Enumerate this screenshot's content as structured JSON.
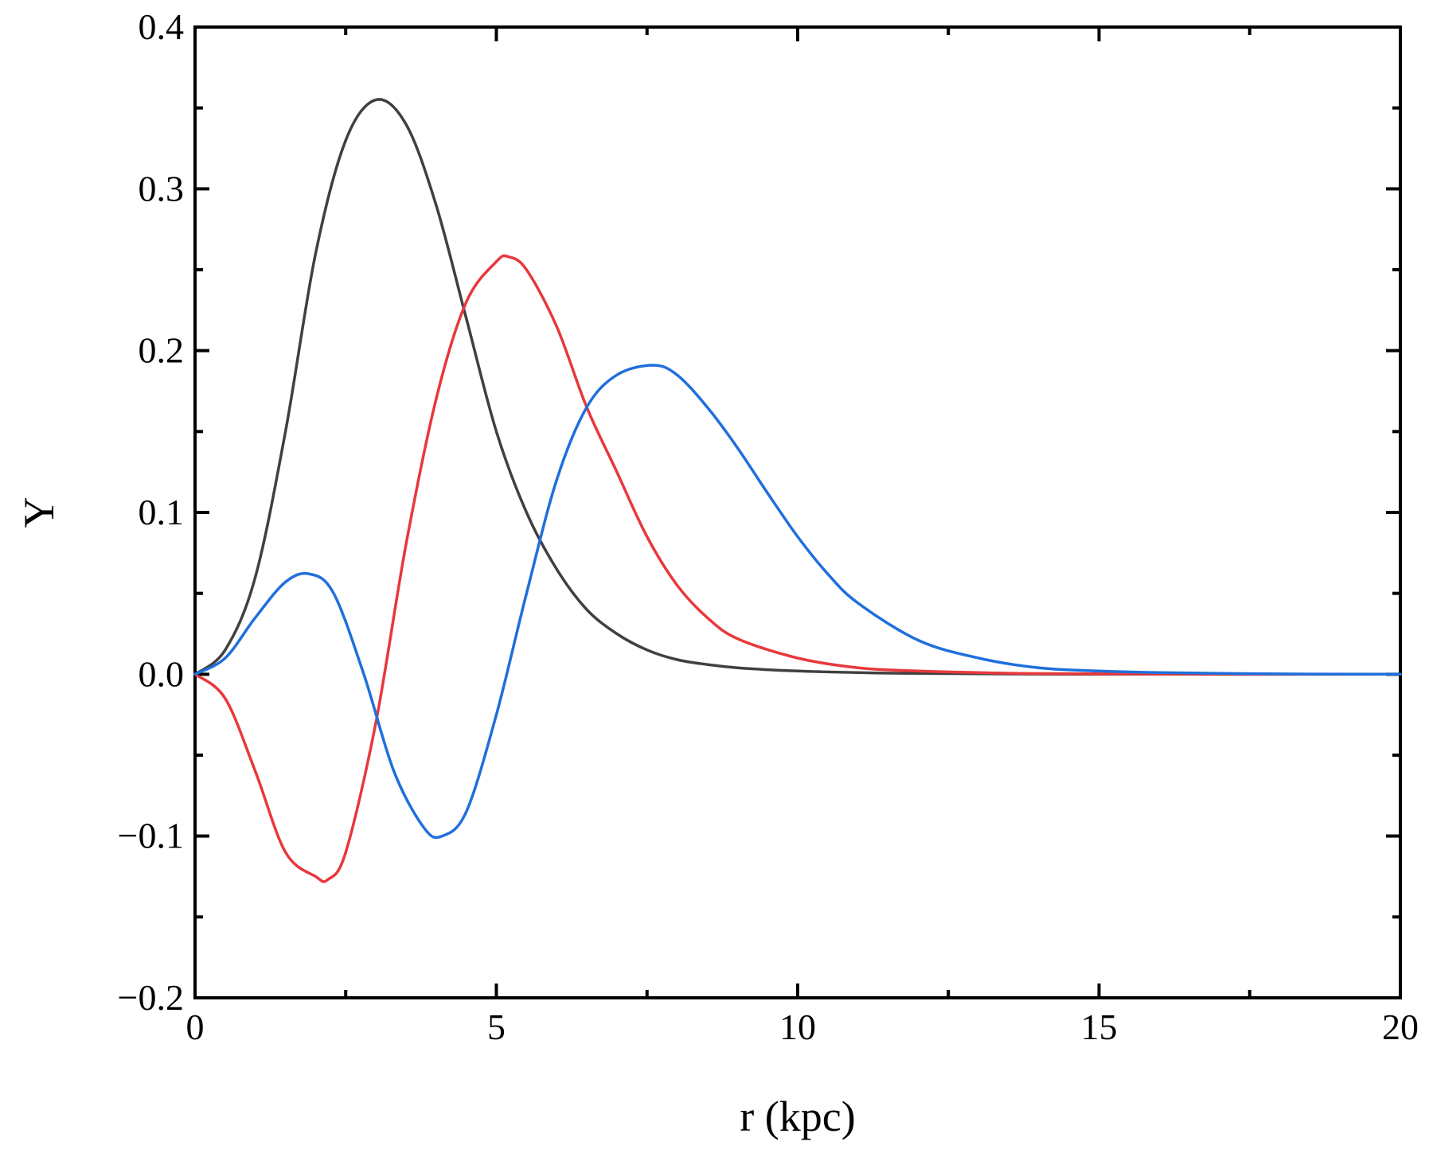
{
  "chart_data": {
    "type": "line",
    "title": "",
    "xlabel": "r (kpc)",
    "ylabel": "Y",
    "xlim": [
      0,
      20
    ],
    "ylim": [
      -0.2,
      0.4
    ],
    "x_ticks": [
      0,
      5,
      10,
      15,
      20
    ],
    "x_tick_labels": [
      "0",
      "5",
      "10",
      "15",
      "20"
    ],
    "y_ticks": [
      -0.2,
      -0.1,
      0.0,
      0.1,
      0.2,
      0.3,
      0.4
    ],
    "y_tick_labels": [
      "−0.2",
      "−0.1",
      "0.0",
      "0.1",
      "0.2",
      "0.3",
      "0.4"
    ],
    "grid": false,
    "legend": "none",
    "series": [
      {
        "color": "#404040",
        "x": [
          0,
          0.5,
          1.0,
          1.5,
          2.0,
          2.5,
          3.0,
          3.5,
          4.0,
          4.5,
          5.0,
          5.5,
          6.0,
          6.5,
          7.0,
          7.5,
          8.0,
          8.5,
          9.0,
          10.0,
          11.0,
          12.0,
          14.0,
          16.0,
          20.0
        ],
        "y": [
          0.0,
          0.015,
          0.06,
          0.15,
          0.26,
          0.33,
          0.355,
          0.34,
          0.29,
          0.22,
          0.15,
          0.1,
          0.065,
          0.04,
          0.025,
          0.015,
          0.009,
          0.006,
          0.004,
          0.002,
          0.001,
          0.0005,
          0.0001,
          0.0,
          0.0
        ]
      },
      {
        "color": "#e8383d",
        "x": [
          0,
          0.5,
          1.0,
          1.5,
          2.0,
          2.2,
          2.5,
          3.0,
          3.5,
          4.0,
          4.5,
          5.0,
          5.2,
          5.5,
          6.0,
          6.5,
          7.0,
          7.5,
          8.0,
          8.5,
          9.0,
          10.0,
          11.0,
          12.0,
          13.0,
          14.0,
          16.0,
          20.0
        ],
        "y": [
          0.0,
          -0.015,
          -0.06,
          -0.11,
          -0.125,
          -0.127,
          -0.11,
          -0.03,
          0.08,
          0.17,
          0.23,
          0.255,
          0.258,
          0.25,
          0.215,
          0.165,
          0.125,
          0.085,
          0.055,
          0.035,
          0.022,
          0.01,
          0.004,
          0.002,
          0.001,
          0.0004,
          0.0001,
          0.0
        ]
      },
      {
        "color": "#1f6fdd",
        "x": [
          0,
          0.5,
          1.0,
          1.5,
          1.9,
          2.3,
          2.8,
          3.3,
          3.8,
          4.1,
          4.5,
          5.0,
          5.5,
          6.0,
          6.5,
          7.0,
          7.6,
          8.0,
          8.5,
          9.0,
          9.5,
          10.0,
          10.5,
          11.0,
          12.0,
          13.0,
          14.0,
          15.0,
          16.0,
          18.0,
          20.0
        ],
        "y": [
          0.0,
          0.01,
          0.035,
          0.057,
          0.062,
          0.05,
          0.0,
          -0.06,
          -0.095,
          -0.1,
          -0.085,
          -0.025,
          0.05,
          0.12,
          0.165,
          0.185,
          0.191,
          0.185,
          0.165,
          0.14,
          0.112,
          0.085,
          0.062,
          0.044,
          0.021,
          0.01,
          0.004,
          0.002,
          0.001,
          0.0002,
          0.0
        ]
      }
    ]
  }
}
